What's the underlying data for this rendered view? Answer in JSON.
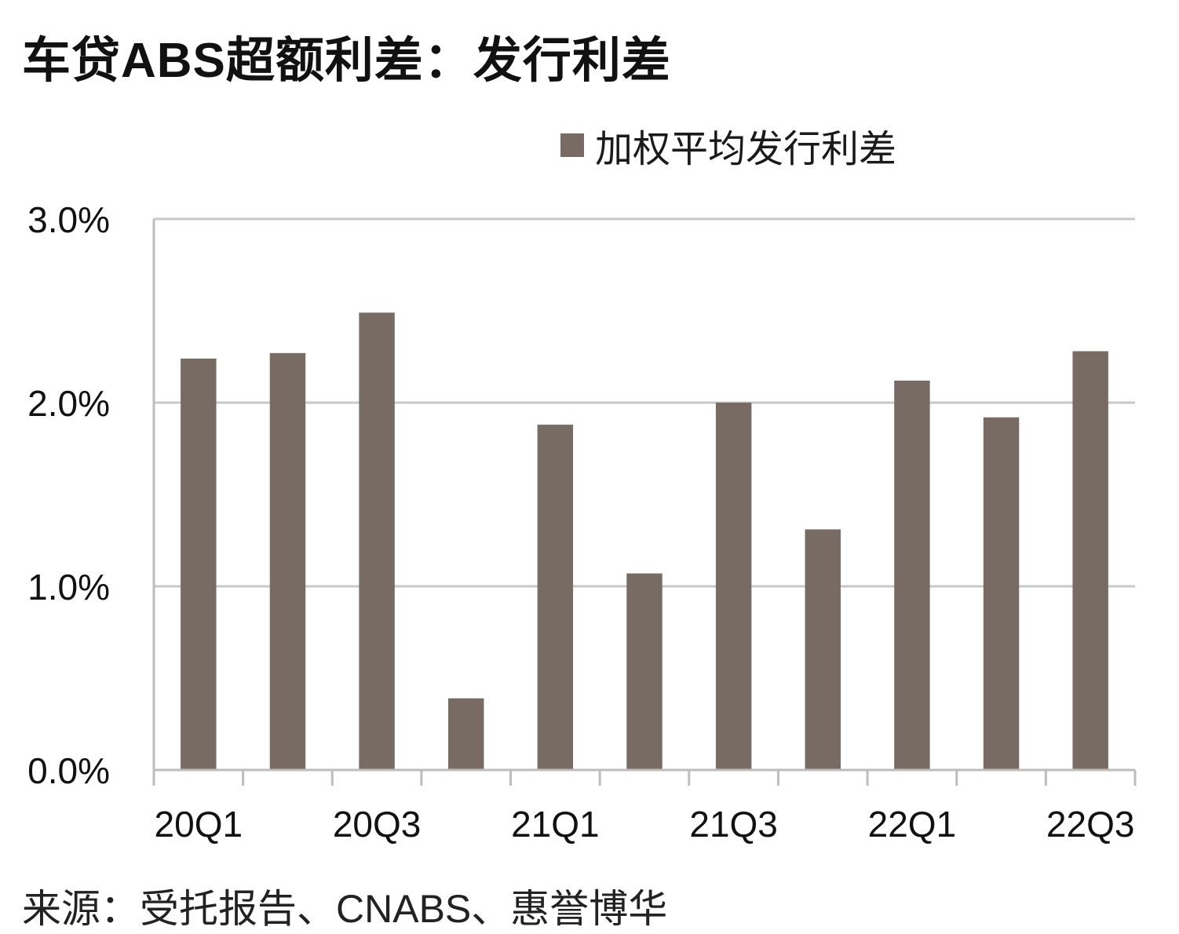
{
  "title": "车贷ABS超额利差：发行利差",
  "source": "来源：受托报告、CNABS、惠誉博华",
  "colors": {
    "bar": "#786b63",
    "grid": "#c8c8c8",
    "axis": "#bdbdbd"
  },
  "chart_data": {
    "type": "bar",
    "legend_position": "top-right",
    "grid": true,
    "ylim": [
      0,
      3.0
    ],
    "yticks": [
      0.0,
      1.0,
      2.0,
      3.0
    ],
    "ytick_labels": [
      "0.0%",
      "1.0%",
      "2.0%",
      "3.0%"
    ],
    "categories": [
      "20Q1",
      "20Q2",
      "20Q3",
      "20Q4",
      "21Q1",
      "21Q2",
      "21Q3",
      "21Q4",
      "22Q1",
      "22Q2",
      "22Q3"
    ],
    "xtick_labels_shown": [
      "20Q1",
      "",
      "20Q3",
      "",
      "21Q1",
      "",
      "21Q3",
      "",
      "22Q1",
      "",
      "22Q3"
    ],
    "series": [
      {
        "name": "加权平均发行利差",
        "values": [
          2.24,
          2.27,
          2.49,
          0.39,
          1.88,
          1.07,
          2.0,
          1.31,
          2.12,
          1.92,
          2.28
        ]
      }
    ]
  }
}
